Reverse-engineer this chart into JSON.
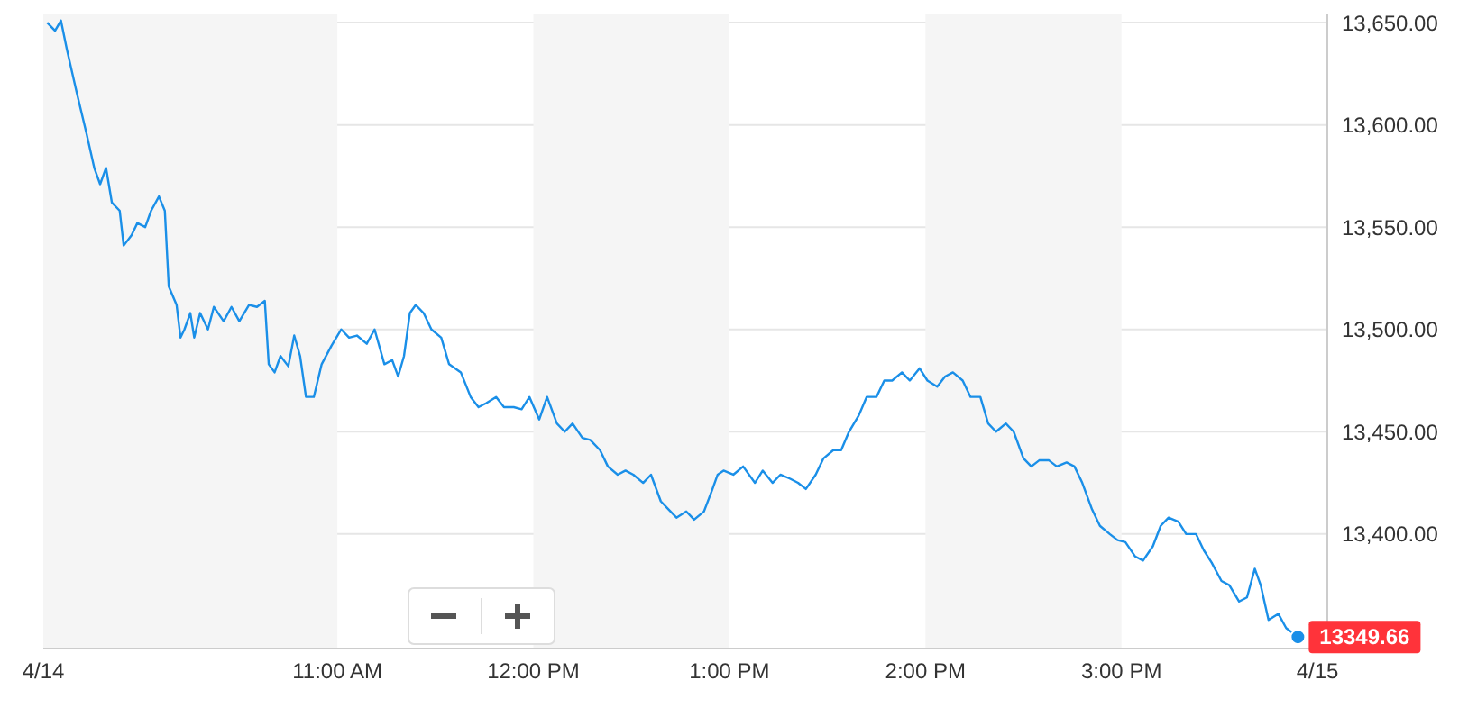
{
  "chart_data": {
    "type": "line",
    "x": [
      9.52,
      9.56,
      9.59,
      9.62,
      9.67,
      9.72,
      9.76,
      9.79,
      9.82,
      9.85,
      9.89,
      9.91,
      9.95,
      9.98,
      10.02,
      10.05,
      10.09,
      10.12,
      10.14,
      10.18,
      10.2,
      10.22,
      10.25,
      10.27,
      10.3,
      10.34,
      10.37,
      10.42,
      10.46,
      10.5,
      10.55,
      10.59,
      10.63,
      10.65,
      10.68,
      10.71,
      10.75,
      10.78,
      10.81,
      10.84,
      10.88,
      10.92,
      10.97,
      11.02,
      11.06,
      11.1,
      11.15,
      11.19,
      11.24,
      11.28,
      11.31,
      11.34,
      11.37,
      11.4,
      11.44,
      11.48,
      11.53,
      11.57,
      11.63,
      11.68,
      11.72,
      11.76,
      11.81,
      11.85,
      11.9,
      11.94,
      11.98,
      12.03,
      12.07,
      12.12,
      12.16,
      12.2,
      12.25,
      12.29,
      12.34,
      12.38,
      12.43,
      12.47,
      12.51,
      12.56,
      12.6,
      12.65,
      12.69,
      12.73,
      12.78,
      12.82,
      12.87,
      12.91,
      12.94,
      12.97,
      13.02,
      13.07,
      13.13,
      13.17,
      13.22,
      13.26,
      13.31,
      13.35,
      13.39,
      13.44,
      13.48,
      13.53,
      13.57,
      13.61,
      13.66,
      13.7,
      13.75,
      13.79,
      13.83,
      13.88,
      13.92,
      13.97,
      14.01,
      14.06,
      14.1,
      14.14,
      14.19,
      14.23,
      14.28,
      14.32,
      14.36,
      14.41,
      14.45,
      14.5,
      14.54,
      14.58,
      14.63,
      14.67,
      14.72,
      14.76,
      14.8,
      14.85,
      14.89,
      14.94,
      14.98,
      15.02,
      15.07,
      15.11,
      15.16,
      15.2,
      15.24,
      15.29,
      15.33,
      15.38,
      15.42,
      15.46,
      15.51,
      15.55,
      15.6,
      15.64,
      15.68,
      15.71,
      15.75,
      15.8,
      15.84,
      15.9
    ],
    "series": [
      {
        "color": "#1a8fe8",
        "values": [
          13650,
          13646,
          13651,
          13637,
          13616,
          13596,
          13579,
          13571,
          13579,
          13562,
          13558,
          13541,
          13546,
          13552,
          13550,
          13558,
          13565,
          13558,
          13521,
          13512,
          13496,
          13500,
          13508,
          13496,
          13508,
          13500,
          13511,
          13504,
          13511,
          13504,
          13512,
          13511,
          13514,
          13483,
          13479,
          13487,
          13482,
          13497,
          13487,
          13467,
          13467,
          13483,
          13492,
          13500,
          13496,
          13497,
          13493,
          13500,
          13483,
          13485,
          13477,
          13487,
          13508,
          13512,
          13508,
          13500,
          13496,
          13483,
          13479,
          13467,
          13462,
          13464,
          13467,
          13462,
          13462,
          13461,
          13467,
          13456,
          13467,
          13454,
          13450,
          13454,
          13447,
          13446,
          13441,
          13433,
          13429,
          13431,
          13429,
          13425,
          13429,
          13416,
          13412,
          13408,
          13411,
          13407,
          13411,
          13421,
          13429,
          13431,
          13429,
          13433,
          13425,
          13431,
          13425,
          13429,
          13427,
          13425,
          13422,
          13429,
          13437,
          13441,
          13441,
          13450,
          13458,
          13467,
          13467,
          13475,
          13475,
          13479,
          13475,
          13481,
          13475,
          13472,
          13477,
          13479,
          13475,
          13467,
          13467,
          13454,
          13450,
          13454,
          13450,
          13437,
          13433,
          13436,
          13436,
          13433,
          13435,
          13433,
          13425,
          13412,
          13404,
          13400,
          13397,
          13396,
          13389,
          13387,
          13394,
          13404,
          13408,
          13406,
          13400,
          13400,
          13392,
          13386,
          13377,
          13375,
          13367,
          13369,
          13383,
          13375,
          13358,
          13361,
          13354,
          13349.66
        ]
      }
    ],
    "xlim": [
      9.5,
      16.05
    ],
    "xticks": [
      {
        "value": 9.5,
        "label": "4/14"
      },
      {
        "value": 11,
        "label": "11:00 AM"
      },
      {
        "value": 12,
        "label": "12:00 PM"
      },
      {
        "value": 13,
        "label": "1:00 PM"
      },
      {
        "value": 14,
        "label": "2:00 PM"
      },
      {
        "value": 15,
        "label": "3:00 PM"
      },
      {
        "value": 16,
        "label": "4/15"
      }
    ],
    "ylim": [
      13344,
      13654
    ],
    "yticks": [
      {
        "value": 13400,
        "label": "13,400.00"
      },
      {
        "value": 13450,
        "label": "13,450.00"
      },
      {
        "value": 13500,
        "label": "13,500.00"
      },
      {
        "value": 13550,
        "label": "13,550.00"
      },
      {
        "value": 13600,
        "label": "13,600.00"
      },
      {
        "value": 13650,
        "label": "13,650.00"
      }
    ],
    "grid": "y",
    "marker": "none",
    "line_style": "solid",
    "legend": false,
    "bands": [
      {
        "axis": "x",
        "from": 9.5,
        "to": 11,
        "color": "#f5f5f5"
      },
      {
        "axis": "x",
        "from": 12,
        "to": 13,
        "color": "#f5f5f5"
      },
      {
        "axis": "x",
        "from": 14,
        "to": 15,
        "color": "#f5f5f5"
      }
    ],
    "annotations": [
      {
        "text": "13349.66",
        "x": 15.9,
        "y": 13349.66
      }
    ]
  }
}
